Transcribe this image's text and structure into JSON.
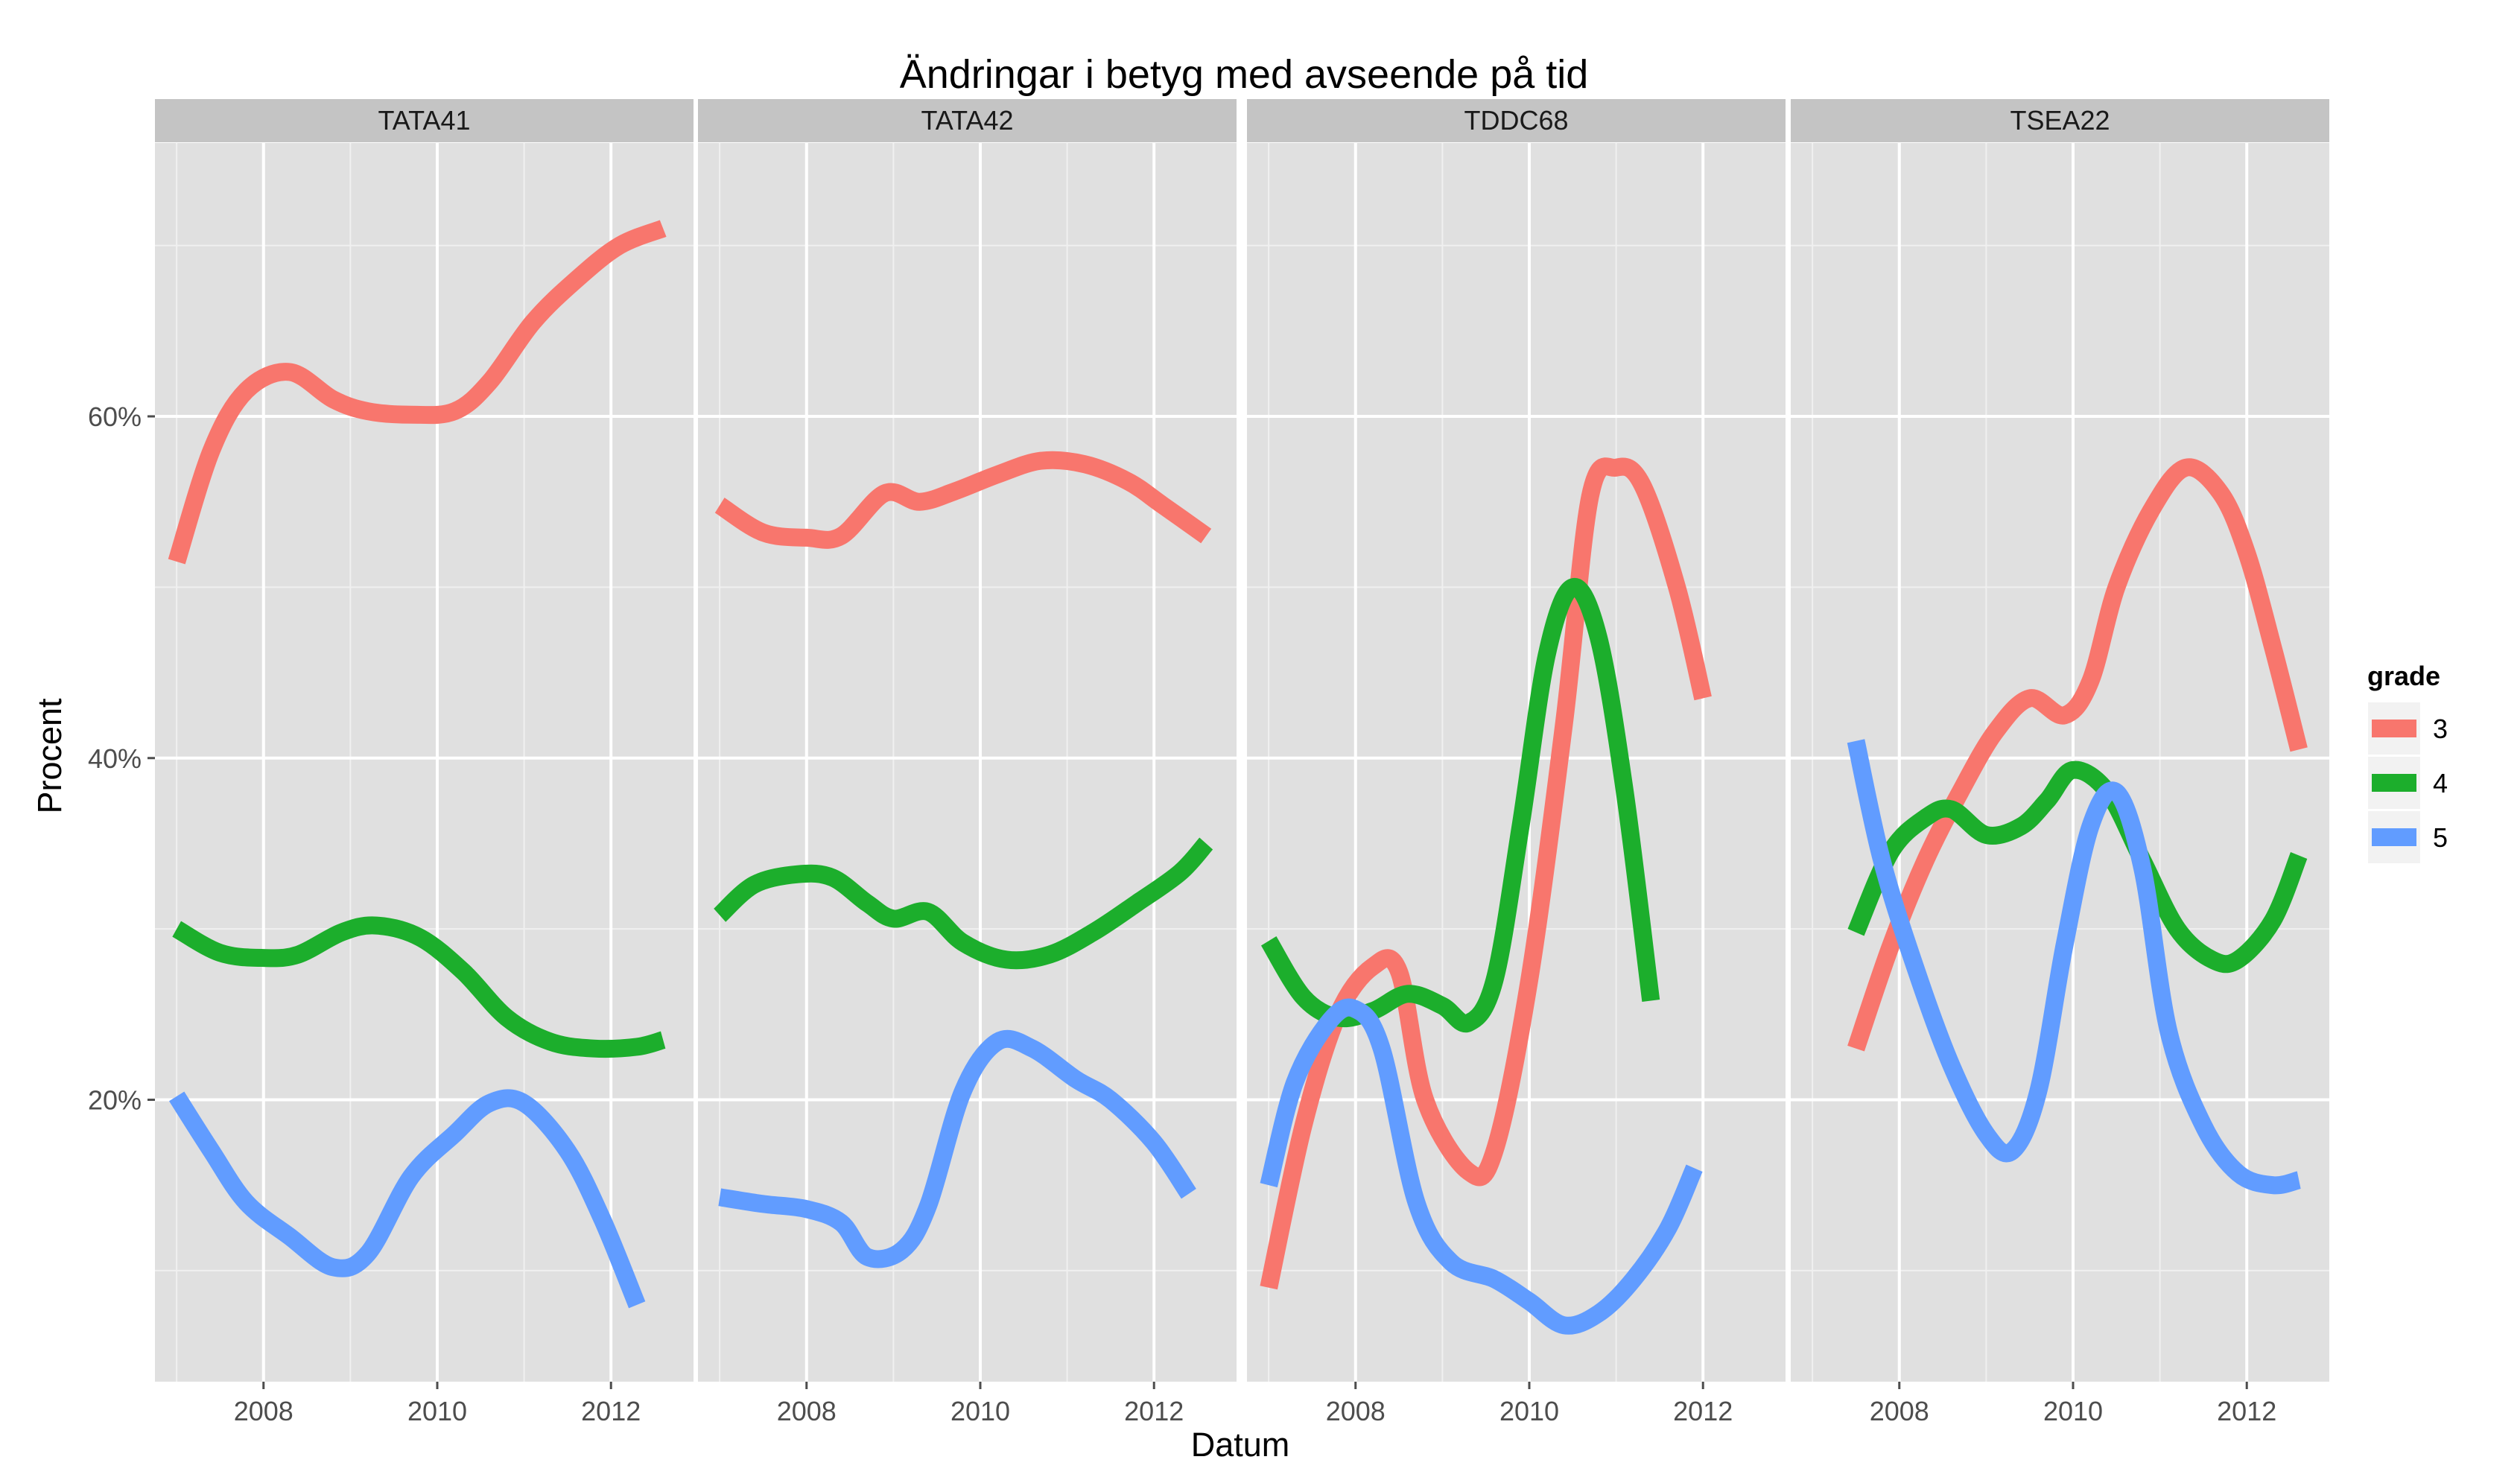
{
  "chart_data": {
    "type": "line",
    "title": "Ändringar i betyg med avseende på tid",
    "xlabel": "Datum",
    "ylabel": "Procent",
    "xlim": [
      2006.75,
      2012.95
    ],
    "ylim": [
      3.5,
      76
    ],
    "x_ticks": [
      2008,
      2010,
      2012
    ],
    "x_tick_labels": [
      "2008",
      "2010",
      "2012"
    ],
    "y_ticks": [
      20,
      40,
      60
    ],
    "y_tick_labels": [
      "20%",
      "40%",
      "60%"
    ],
    "grid": true,
    "legend": {
      "title": "grade",
      "position": "right"
    },
    "colors": {
      "3": "#F8766D",
      "4": "#1CAE2C",
      "5": "#619CFF"
    },
    "panels": [
      {
        "name": "TATA41",
        "series": [
          {
            "name": "3",
            "points": [
              [
                2007.0,
                51.5
              ],
              [
                2007.4,
                58.0
              ],
              [
                2007.8,
                61.5
              ],
              [
                2008.3,
                62.6
              ],
              [
                2008.8,
                61.0
              ],
              [
                2009.2,
                60.3
              ],
              [
                2009.7,
                60.1
              ],
              [
                2010.2,
                60.3
              ],
              [
                2010.6,
                62.0
              ],
              [
                2011.1,
                65.5
              ],
              [
                2011.6,
                68.0
              ],
              [
                2012.1,
                70.0
              ],
              [
                2012.6,
                71.0
              ]
            ]
          },
          {
            "name": "4",
            "points": [
              [
                2007.0,
                30.0
              ],
              [
                2007.5,
                28.6
              ],
              [
                2008.0,
                28.3
              ],
              [
                2008.4,
                28.5
              ],
              [
                2008.9,
                29.8
              ],
              [
                2009.3,
                30.2
              ],
              [
                2009.8,
                29.5
              ],
              [
                2010.3,
                27.5
              ],
              [
                2010.8,
                24.8
              ],
              [
                2011.3,
                23.4
              ],
              [
                2011.8,
                23.0
              ],
              [
                2012.3,
                23.1
              ],
              [
                2012.6,
                23.5
              ]
            ]
          },
          {
            "name": "5",
            "points": [
              [
                2007.0,
                20.2
              ],
              [
                2007.4,
                17.0
              ],
              [
                2007.8,
                14.0
              ],
              [
                2008.3,
                12.0
              ],
              [
                2008.8,
                10.2
              ],
              [
                2009.2,
                11.0
              ],
              [
                2009.7,
                15.5
              ],
              [
                2010.2,
                18.0
              ],
              [
                2010.6,
                19.8
              ],
              [
                2011.0,
                19.8
              ],
              [
                2011.5,
                17.0
              ],
              [
                2011.9,
                13.0
              ],
              [
                2012.3,
                8.0
              ]
            ]
          }
        ]
      },
      {
        "name": "TATA42",
        "series": [
          {
            "name": "3",
            "points": [
              [
                2007.0,
                54.8
              ],
              [
                2007.5,
                53.2
              ],
              [
                2008.0,
                52.9
              ],
              [
                2008.4,
                53.0
              ],
              [
                2008.9,
                55.5
              ],
              [
                2009.3,
                55.0
              ],
              [
                2009.7,
                55.6
              ],
              [
                2010.2,
                56.6
              ],
              [
                2010.7,
                57.4
              ],
              [
                2011.2,
                57.2
              ],
              [
                2011.7,
                56.2
              ],
              [
                2012.1,
                54.8
              ],
              [
                2012.6,
                53.0
              ]
            ]
          },
          {
            "name": "4",
            "points": [
              [
                2007.0,
                30.8
              ],
              [
                2007.4,
                32.6
              ],
              [
                2007.9,
                33.2
              ],
              [
                2008.3,
                33.0
              ],
              [
                2008.7,
                31.5
              ],
              [
                2009.0,
                30.6
              ],
              [
                2009.4,
                31.0
              ],
              [
                2009.8,
                29.2
              ],
              [
                2010.3,
                28.2
              ],
              [
                2010.8,
                28.5
              ],
              [
                2011.3,
                29.8
              ],
              [
                2011.8,
                31.5
              ],
              [
                2012.3,
                33.3
              ],
              [
                2012.6,
                35.0
              ]
            ]
          },
          {
            "name": "5",
            "points": [
              [
                2007.0,
                14.3
              ],
              [
                2007.5,
                13.9
              ],
              [
                2008.0,
                13.6
              ],
              [
                2008.4,
                12.8
              ],
              [
                2008.7,
                10.8
              ],
              [
                2009.1,
                11.2
              ],
              [
                2009.4,
                13.8
              ],
              [
                2009.8,
                20.5
              ],
              [
                2010.2,
                23.4
              ],
              [
                2010.6,
                23.0
              ],
              [
                2011.1,
                21.2
              ],
              [
                2011.5,
                20.0
              ],
              [
                2012.0,
                17.5
              ],
              [
                2012.4,
                14.5
              ]
            ]
          }
        ]
      },
      {
        "name": "TDDC68",
        "series": [
          {
            "name": "3",
            "points": [
              [
                2007.0,
                9.0
              ],
              [
                2007.4,
                18.5
              ],
              [
                2007.8,
                25.0
              ],
              [
                2008.2,
                27.8
              ],
              [
                2008.5,
                27.5
              ],
              [
                2008.8,
                20.0
              ],
              [
                2009.3,
                15.8
              ],
              [
                2009.6,
                17.0
              ],
              [
                2010.0,
                27.0
              ],
              [
                2010.4,
                42.0
              ],
              [
                2010.7,
                55.3
              ],
              [
                2011.0,
                57.0
              ],
              [
                2011.3,
                56.0
              ],
              [
                2011.7,
                50.0
              ],
              [
                2012.0,
                43.5
              ]
            ]
          },
          {
            "name": "4",
            "points": [
              [
                2007.0,
                29.3
              ],
              [
                2007.4,
                26.0
              ],
              [
                2007.8,
                24.8
              ],
              [
                2008.2,
                25.2
              ],
              [
                2008.6,
                26.2
              ],
              [
                2009.0,
                25.5
              ],
              [
                2009.3,
                24.5
              ],
              [
                2009.6,
                27.0
              ],
              [
                2009.9,
                36.0
              ],
              [
                2010.2,
                46.0
              ],
              [
                2010.5,
                50.0
              ],
              [
                2010.8,
                47.0
              ],
              [
                2011.1,
                38.0
              ],
              [
                2011.4,
                25.8
              ]
            ]
          },
          {
            "name": "5",
            "points": [
              [
                2007.0,
                15.0
              ],
              [
                2007.3,
                21.0
              ],
              [
                2007.7,
                24.6
              ],
              [
                2008.0,
                25.3
              ],
              [
                2008.3,
                23.0
              ],
              [
                2008.7,
                14.0
              ],
              [
                2009.1,
                10.5
              ],
              [
                2009.6,
                9.5
              ],
              [
                2010.0,
                8.2
              ],
              [
                2010.4,
                6.8
              ],
              [
                2010.8,
                7.5
              ],
              [
                2011.2,
                9.5
              ],
              [
                2011.6,
                12.5
              ],
              [
                2011.9,
                16.0
              ]
            ]
          }
        ]
      },
      {
        "name": "TSEA22",
        "series": [
          {
            "name": "3",
            "points": [
              [
                2007.5,
                23.0
              ],
              [
                2007.9,
                29.0
              ],
              [
                2008.3,
                34.0
              ],
              [
                2008.7,
                38.0
              ],
              [
                2009.1,
                41.5
              ],
              [
                2009.5,
                43.5
              ],
              [
                2009.9,
                42.5
              ],
              [
                2010.2,
                44.5
              ],
              [
                2010.5,
                50.0
              ],
              [
                2010.9,
                54.5
              ],
              [
                2011.3,
                57.0
              ],
              [
                2011.7,
                55.5
              ],
              [
                2012.0,
                52.0
              ],
              [
                2012.3,
                46.5
              ],
              [
                2012.6,
                40.5
              ]
            ]
          },
          {
            "name": "4",
            "points": [
              [
                2007.5,
                29.8
              ],
              [
                2007.9,
                34.5
              ],
              [
                2008.3,
                36.5
              ],
              [
                2008.6,
                37.0
              ],
              [
                2009.0,
                35.5
              ],
              [
                2009.4,
                36.0
              ],
              [
                2009.7,
                37.5
              ],
              [
                2010.0,
                39.3
              ],
              [
                2010.4,
                38.0
              ],
              [
                2010.8,
                34.0
              ],
              [
                2011.2,
                30.0
              ],
              [
                2011.6,
                28.2
              ],
              [
                2011.9,
                28.2
              ],
              [
                2012.3,
                30.5
              ],
              [
                2012.6,
                34.3
              ]
            ]
          },
          {
            "name": "5",
            "points": [
              [
                2007.5,
                41.0
              ],
              [
                2007.8,
                34.0
              ],
              [
                2008.2,
                27.5
              ],
              [
                2008.6,
                22.0
              ],
              [
                2009.0,
                18.0
              ],
              [
                2009.3,
                17.0
              ],
              [
                2009.6,
                20.5
              ],
              [
                2009.9,
                29.0
              ],
              [
                2010.2,
                36.0
              ],
              [
                2010.5,
                38.0
              ],
              [
                2010.8,
                33.5
              ],
              [
                2011.1,
                24.0
              ],
              [
                2011.5,
                18.5
              ],
              [
                2011.9,
                15.7
              ],
              [
                2012.3,
                15.0
              ],
              [
                2012.6,
                15.3
              ]
            ]
          }
        ]
      }
    ]
  }
}
